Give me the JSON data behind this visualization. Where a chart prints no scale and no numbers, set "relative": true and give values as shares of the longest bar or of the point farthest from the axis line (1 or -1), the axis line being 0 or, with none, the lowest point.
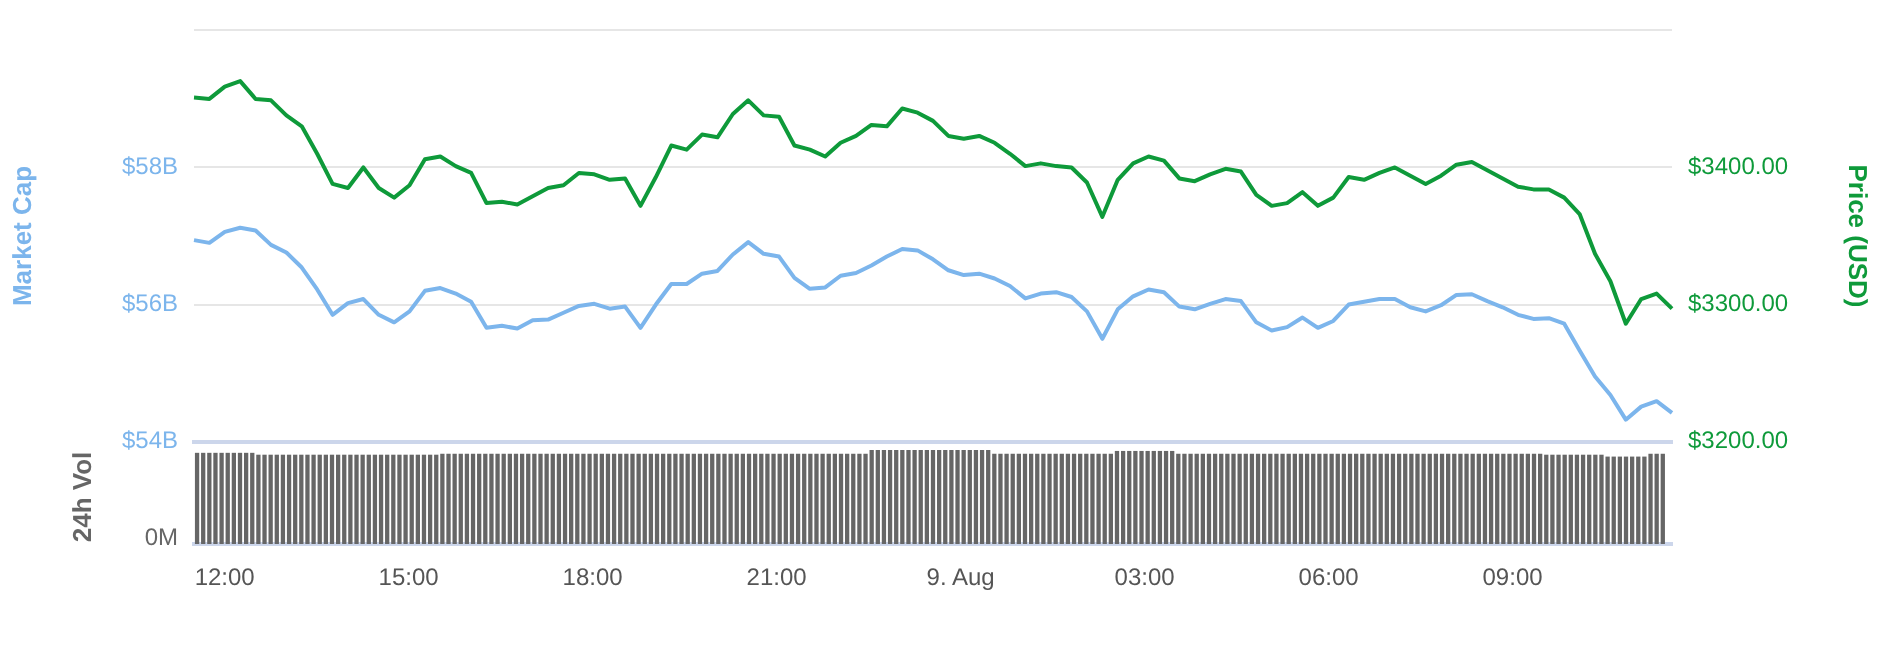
{
  "chart_data": [
    {
      "type": "line",
      "ylabel": "Market Cap",
      "y2label": "Price (USD)",
      "categories": [
        null,
        null,
        null,
        null,
        null,
        null,
        null,
        null,
        null,
        null,
        null,
        null,
        null,
        null,
        null,
        null,
        null,
        null,
        null,
        null,
        null,
        null,
        null,
        null,
        null,
        null,
        null,
        null,
        null,
        null,
        null,
        null,
        null,
        null,
        null,
        null,
        null,
        null,
        null,
        null,
        null,
        null,
        null,
        null,
        null,
        null,
        null,
        null,
        null,
        null,
        null,
        null,
        null,
        null,
        null,
        null,
        null,
        null,
        null,
        null,
        null,
        null,
        null,
        null,
        null,
        null,
        null,
        null,
        null,
        null,
        null,
        null,
        null,
        null,
        null,
        null,
        null,
        null,
        null,
        null,
        null,
        null,
        null,
        null,
        null,
        null,
        null,
        null,
        null,
        null,
        null,
        null,
        null,
        null,
        null,
        null,
        null
      ],
      "ylim": [
        54,
        60
      ],
      "yticks": [
        {
          "value": 54,
          "label": "$54B"
        },
        {
          "value": 56,
          "label": "$56B"
        },
        {
          "value": 58,
          "label": "$58B"
        },
        {
          "value": 60,
          "label": null
        }
      ],
      "y2lim": [
        3200,
        3500
      ],
      "y2ticks": [
        {
          "value": 3200,
          "label": "$3200.00"
        },
        {
          "value": 3300,
          "label": "$3300.00"
        },
        {
          "value": 3400,
          "label": "$3400.00"
        },
        {
          "value": 3500,
          "label": null
        }
      ],
      "grid": "y",
      "legend": false,
      "marker": "none",
      "line_style": "solid",
      "series": [
        {
          "color": "#7cb5ec",
          "values": [
            56.94,
            56.9,
            57.06,
            57.12,
            57.08,
            56.87,
            56.76,
            56.54,
            56.22,
            55.85,
            56.02,
            56.08,
            55.85,
            55.74,
            55.9,
            56.2,
            56.24,
            56.16,
            56.04,
            55.66,
            55.69,
            55.65,
            55.77,
            55.78,
            55.88,
            55.98,
            56.01,
            55.94,
            55.97,
            55.66,
            56.0,
            56.3,
            56.3,
            56.45,
            56.49,
            56.73,
            56.91,
            56.74,
            56.7,
            56.39,
            56.23,
            56.25,
            56.42,
            56.46,
            56.57,
            56.7,
            56.81,
            56.79,
            56.66,
            56.5,
            56.43,
            56.45,
            56.38,
            56.27,
            56.09,
            56.16,
            56.18,
            56.11,
            55.9,
            55.5,
            55.93,
            56.12,
            56.22,
            56.18,
            55.97,
            55.93,
            56.01,
            56.08,
            56.05,
            55.74,
            55.62,
            55.67,
            55.81,
            55.66,
            55.76,
            56.0,
            56.04,
            56.08,
            56.08,
            55.96,
            55.9,
            55.99,
            56.14,
            56.15,
            56.05,
            55.96,
            55.85,
            55.79,
            55.8,
            55.72,
            55.33,
            54.95,
            54.68,
            54.32,
            54.51,
            54.59,
            54.42
          ]
        },
        {
          "color": "#0e9a3a",
          "axis": "y2",
          "values": [
            3451,
            3450,
            3459,
            3463,
            3450,
            3449,
            3438,
            3430,
            3410,
            3388,
            3385,
            3400,
            3385,
            3378,
            3387,
            3406,
            3408,
            3401,
            3396,
            3374,
            3375,
            3373,
            3379,
            3385,
            3387,
            3396,
            3395,
            3391,
            3392,
            3372,
            3393,
            3416,
            3413,
            3424,
            3422,
            3439,
            3449,
            3438,
            3437,
            3416,
            3413,
            3408,
            3418,
            3423,
            3431,
            3430,
            3443,
            3440,
            3434,
            3423,
            3421,
            3423,
            3418,
            3410,
            3401,
            3403,
            3401,
            3400,
            3389,
            3364,
            3391,
            3403,
            3408,
            3405,
            3392,
            3390,
            3395,
            3399,
            3397,
            3380,
            3372,
            3374,
            3382,
            3372,
            3378,
            3393,
            3391,
            3396,
            3400,
            3394,
            3388,
            3394,
            3402,
            3404,
            3398,
            3392,
            3386,
            3384,
            3384,
            3378,
            3366,
            3337,
            3317,
            3286,
            3304,
            3308,
            3297
          ]
        }
      ]
    },
    {
      "type": "bar",
      "ylabel": "24h Vol",
      "relative": true,
      "annotations": [
        "0M"
      ],
      "xlim": [
        "--08-08T11:30",
        "--08-09T11:36"
      ],
      "xticks": [
        {
          "value": "--08-08T12:00",
          "label": "12:00"
        },
        {
          "value": "--08-08T15:00",
          "label": "15:00"
        },
        {
          "value": "--08-08T18:00",
          "label": "18:00"
        },
        {
          "value": "--08-08T21:00",
          "label": "21:00"
        },
        {
          "value": "--08-09T00:00",
          "label": "9. Aug"
        },
        {
          "value": "--08-09T03:00",
          "label": "03:00"
        },
        {
          "value": "--08-09T06:00",
          "label": "06:00"
        },
        {
          "value": "--08-09T09:00",
          "label": "09:00"
        }
      ],
      "legend": false,
      "color": "#666666",
      "x": [
        "--08-08T11:33",
        "--08-08T11:39",
        "--08-08T11:45",
        "--08-08T11:51",
        "--08-08T11:57",
        "--08-08T12:03",
        "--08-08T12:09",
        "--08-08T12:15",
        "--08-08T12:21",
        "--08-08T12:27",
        "--08-08T12:33",
        "--08-08T12:39",
        "--08-08T12:45",
        "--08-08T12:51",
        "--08-08T12:57",
        "--08-08T13:03",
        "--08-08T13:09",
        "--08-08T13:15",
        "--08-08T13:21",
        "--08-08T13:27",
        "--08-08T13:33",
        "--08-08T13:39",
        "--08-08T13:45",
        "--08-08T13:51",
        "--08-08T13:57",
        "--08-08T14:03",
        "--08-08T14:09",
        "--08-08T14:15",
        "--08-08T14:21",
        "--08-08T14:27",
        "--08-08T14:33",
        "--08-08T14:39",
        "--08-08T14:45",
        "--08-08T14:51",
        "--08-08T14:57",
        "--08-08T15:03",
        "--08-08T15:09",
        "--08-08T15:15",
        "--08-08T15:21",
        "--08-08T15:27",
        "--08-08T15:33",
        "--08-08T15:39",
        "--08-08T15:45",
        "--08-08T15:51",
        "--08-08T15:57",
        "--08-08T16:03",
        "--08-08T16:09",
        "--08-08T16:15",
        "--08-08T16:21",
        "--08-08T16:27",
        "--08-08T16:33",
        "--08-08T16:39",
        "--08-08T16:45",
        "--08-08T16:51",
        "--08-08T16:57",
        "--08-08T17:03",
        "--08-08T17:09",
        "--08-08T17:15",
        "--08-08T17:21",
        "--08-08T17:27",
        "--08-08T17:33",
        "--08-08T17:39",
        "--08-08T17:45",
        "--08-08T17:51",
        "--08-08T17:57",
        "--08-08T18:03",
        "--08-08T18:09",
        "--08-08T18:15",
        "--08-08T18:21",
        "--08-08T18:27",
        "--08-08T18:33",
        "--08-08T18:39",
        "--08-08T18:45",
        "--08-08T18:51",
        "--08-08T18:57",
        "--08-08T19:03",
        "--08-08T19:09",
        "--08-08T19:15",
        "--08-08T19:21",
        "--08-08T19:27",
        "--08-08T19:33",
        "--08-08T19:39",
        "--08-08T19:45",
        "--08-08T19:51",
        "--08-08T19:57",
        "--08-08T20:03",
        "--08-08T20:09",
        "--08-08T20:15",
        "--08-08T20:21",
        "--08-08T20:27",
        "--08-08T20:33",
        "--08-08T20:39",
        "--08-08T20:45",
        "--08-08T20:51",
        "--08-08T20:57",
        "--08-08T21:03",
        "--08-08T21:09",
        "--08-08T21:15",
        "--08-08T21:21",
        "--08-08T21:27",
        "--08-08T21:33",
        "--08-08T21:39",
        "--08-08T21:45",
        "--08-08T21:51",
        "--08-08T21:57",
        "--08-08T22:03",
        "--08-08T22:09",
        "--08-08T22:15",
        "--08-08T22:21",
        "--08-08T22:27",
        "--08-08T22:33",
        "--08-08T22:39",
        "--08-08T22:45",
        "--08-08T22:51",
        "--08-08T22:57",
        "--08-08T23:03",
        "--08-08T23:09",
        "--08-08T23:15",
        "--08-08T23:21",
        "--08-08T23:27",
        "--08-08T23:33",
        "--08-08T23:39",
        "--08-08T23:45",
        "--08-08T23:51",
        "--08-08T23:57",
        "--08-09T00:03",
        "--08-09T00:09",
        "--08-09T00:15",
        "--08-09T00:21",
        "--08-09T00:27",
        "--08-09T00:33",
        "--08-09T00:39",
        "--08-09T00:45",
        "--08-09T00:51",
        "--08-09T00:57",
        "--08-09T01:03",
        "--08-09T01:09",
        "--08-09T01:15",
        "--08-09T01:21",
        "--08-09T01:27",
        "--08-09T01:33",
        "--08-09T01:39",
        "--08-09T01:45",
        "--08-09T01:51",
        "--08-09T01:57",
        "--08-09T02:03",
        "--08-09T02:09",
        "--08-09T02:15",
        "--08-09T02:21",
        "--08-09T02:27",
        "--08-09T02:33",
        "--08-09T02:39",
        "--08-09T02:45",
        "--08-09T02:51",
        "--08-09T02:57",
        "--08-09T03:03",
        "--08-09T03:09",
        "--08-09T03:15",
        "--08-09T03:21",
        "--08-09T03:27",
        "--08-09T03:33",
        "--08-09T03:39",
        "--08-09T03:45",
        "--08-09T03:51",
        "--08-09T03:57",
        "--08-09T04:03",
        "--08-09T04:09",
        "--08-09T04:15",
        "--08-09T04:21",
        "--08-09T04:27",
        "--08-09T04:33",
        "--08-09T04:39",
        "--08-09T04:45",
        "--08-09T04:51",
        "--08-09T04:57",
        "--08-09T05:03",
        "--08-09T05:09",
        "--08-09T05:15",
        "--08-09T05:21",
        "--08-09T05:27",
        "--08-09T05:33",
        "--08-09T05:39",
        "--08-09T05:45",
        "--08-09T05:51",
        "--08-09T05:57",
        "--08-09T06:03",
        "--08-09T06:09",
        "--08-09T06:15",
        "--08-09T06:21",
        "--08-09T06:27",
        "--08-09T06:33",
        "--08-09T06:39",
        "--08-09T06:45",
        "--08-09T06:51",
        "--08-09T06:57",
        "--08-09T07:03",
        "--08-09T07:09",
        "--08-09T07:15",
        "--08-09T07:21",
        "--08-09T07:27",
        "--08-09T07:33",
        "--08-09T07:39",
        "--08-09T07:45",
        "--08-09T07:51",
        "--08-09T07:57",
        "--08-09T08:03",
        "--08-09T08:09",
        "--08-09T08:15",
        "--08-09T08:21",
        "--08-09T08:27",
        "--08-09T08:33",
        "--08-09T08:39",
        "--08-09T08:45",
        "--08-09T08:51",
        "--08-09T08:57",
        "--08-09T09:03",
        "--08-09T09:09",
        "--08-09T09:15",
        "--08-09T09:21",
        "--08-09T09:27",
        "--08-09T09:33",
        "--08-09T09:39",
        "--08-09T09:45",
        "--08-09T09:51",
        "--08-09T09:57",
        "--08-09T10:03",
        "--08-09T10:09",
        "--08-09T10:15",
        "--08-09T10:21",
        "--08-09T10:27",
        "--08-09T10:33",
        "--08-09T10:39",
        "--08-09T10:45",
        "--08-09T10:51",
        "--08-09T10:57",
        "--08-09T11:03",
        "--08-09T11:09",
        "--08-09T11:15",
        "--08-09T11:21",
        "--08-09T11:27"
      ],
      "values": [
        0.97,
        0.97,
        0.97,
        0.97,
        0.97,
        0.97,
        0.97,
        0.97,
        0.97,
        0.97,
        0.95,
        0.95,
        0.95,
        0.95,
        0.95,
        0.95,
        0.95,
        0.95,
        0.95,
        0.95,
        0.95,
        0.95,
        0.95,
        0.95,
        0.95,
        0.95,
        0.95,
        0.95,
        0.95,
        0.95,
        0.95,
        0.95,
        0.95,
        0.95,
        0.95,
        0.95,
        0.95,
        0.95,
        0.95,
        0.95,
        0.96,
        0.96,
        0.96,
        0.96,
        0.96,
        0.96,
        0.96,
        0.96,
        0.96,
        0.96,
        0.96,
        0.96,
        0.96,
        0.96,
        0.96,
        0.96,
        0.96,
        0.96,
        0.96,
        0.96,
        0.96,
        0.96,
        0.96,
        0.96,
        0.96,
        0.96,
        0.96,
        0.96,
        0.96,
        0.96,
        0.96,
        0.96,
        0.96,
        0.96,
        0.96,
        0.96,
        0.96,
        0.96,
        0.96,
        0.96,
        0.96,
        0.96,
        0.96,
        0.96,
        0.96,
        0.96,
        0.96,
        0.96,
        0.96,
        0.96,
        0.96,
        0.96,
        0.96,
        0.96,
        0.96,
        0.96,
        0.96,
        0.96,
        0.96,
        0.96,
        0.96,
        0.96,
        0.96,
        0.96,
        0.96,
        0.96,
        0.96,
        0.96,
        0.96,
        0.96,
        1,
        1,
        1,
        1,
        1,
        1,
        1,
        1,
        1,
        1,
        1,
        1,
        1,
        1,
        1,
        1,
        1,
        1,
        1,
        1,
        0.96,
        0.96,
        0.96,
        0.96,
        0.96,
        0.96,
        0.96,
        0.96,
        0.96,
        0.96,
        0.96,
        0.96,
        0.96,
        0.96,
        0.96,
        0.96,
        0.96,
        0.96,
        0.96,
        0.96,
        0.99,
        0.99,
        0.99,
        0.99,
        0.99,
        0.99,
        0.99,
        0.99,
        0.99,
        0.99,
        0.96,
        0.96,
        0.96,
        0.96,
        0.96,
        0.96,
        0.96,
        0.96,
        0.96,
        0.96,
        0.96,
        0.96,
        0.96,
        0.96,
        0.96,
        0.96,
        0.96,
        0.96,
        0.96,
        0.96,
        0.96,
        0.96,
        0.96,
        0.96,
        0.96,
        0.96,
        0.96,
        0.96,
        0.96,
        0.96,
        0.96,
        0.96,
        0.96,
        0.96,
        0.96,
        0.96,
        0.96,
        0.96,
        0.96,
        0.96,
        0.96,
        0.96,
        0.96,
        0.96,
        0.96,
        0.96,
        0.96,
        0.96,
        0.96,
        0.96,
        0.96,
        0.96,
        0.96,
        0.96,
        0.96,
        0.96,
        0.96,
        0.96,
        0.96,
        0.96,
        0.95,
        0.95,
        0.95,
        0.95,
        0.95,
        0.95,
        0.95,
        0.95,
        0.95,
        0.95,
        0.93,
        0.93,
        0.93,
        0.93,
        0.93,
        0.93,
        0.93,
        0.96,
        0.96,
        0.96
      ]
    }
  ]
}
